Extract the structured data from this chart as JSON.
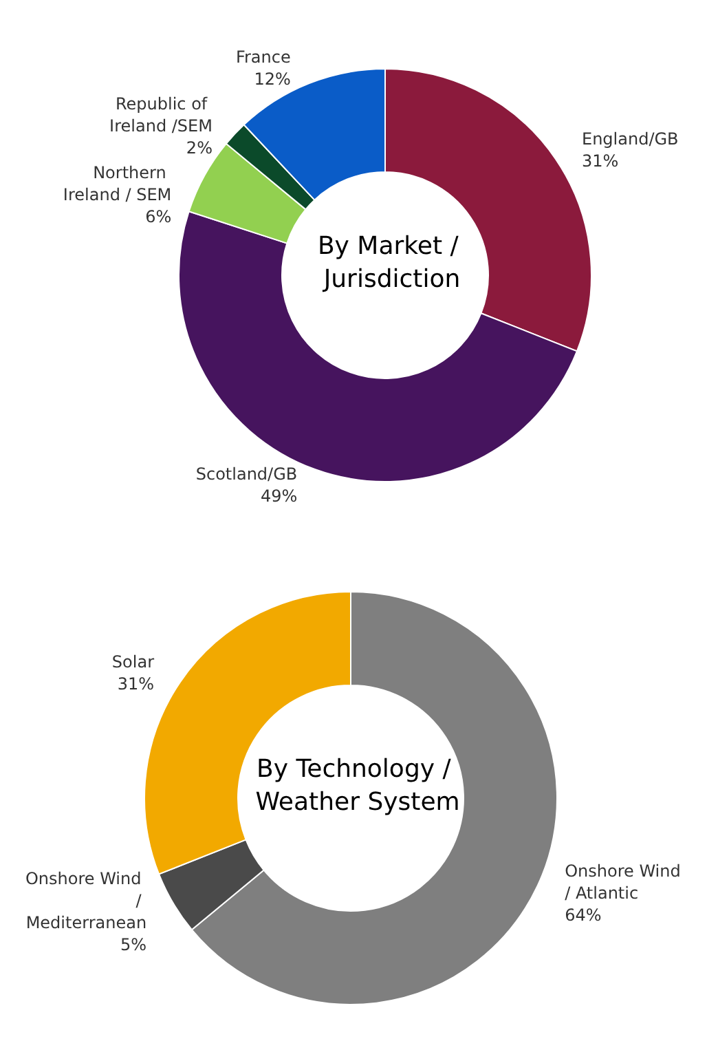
{
  "chart_data": [
    {
      "type": "donut",
      "title": "By Market / Jurisdiction",
      "categories": [
        "England/GB",
        "Scotland/GB",
        "Northern Ireland / SEM",
        "Republic of Ireland /SEM",
        "France"
      ],
      "values": [
        31,
        49,
        6,
        2,
        12
      ],
      "value_labels": [
        "31%",
        "49%",
        "6%",
        "2%",
        "12%"
      ],
      "colors": [
        "#8b1a3c",
        "#46145e",
        "#92d050",
        "#0b4a2a",
        "#0a5cc8"
      ],
      "legend": false
    },
    {
      "type": "donut",
      "title": "By Technology / Weather System",
      "categories": [
        "Onshore Wind / Atlantic",
        "Onshore Wind / Mediterranean",
        "Solar"
      ],
      "values": [
        64,
        5,
        31
      ],
      "value_labels": [
        "64%",
        "5%",
        "31%"
      ],
      "colors": [
        "#7f7f7f",
        "#4a4a4a",
        "#f2a900"
      ],
      "legend": false
    }
  ]
}
